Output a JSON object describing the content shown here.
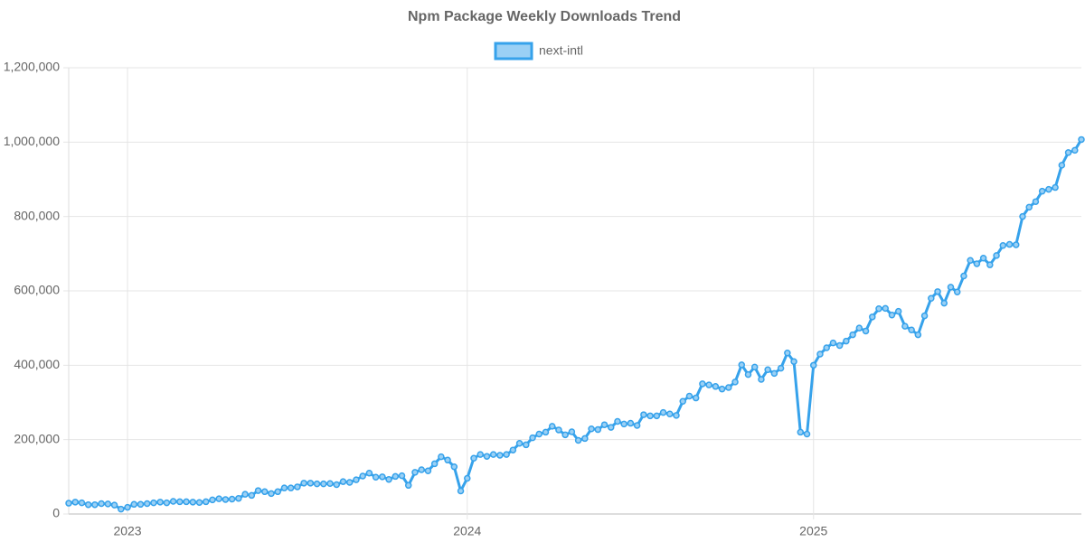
{
  "chart_data": {
    "type": "line",
    "title": "Npm Package Weekly Downloads Trend",
    "categories": [
      null,
      null,
      null,
      null,
      null,
      null,
      null,
      null,
      null,
      "2023",
      null,
      null,
      null,
      null,
      null,
      null,
      null,
      null,
      null,
      null,
      null,
      null,
      null,
      null,
      null,
      null,
      null,
      null,
      null,
      null,
      null,
      null,
      null,
      null,
      null,
      null,
      null,
      null,
      null,
      null,
      null,
      null,
      null,
      null,
      null,
      null,
      null,
      null,
      null,
      null,
      null,
      null,
      null,
      null,
      null,
      null,
      null,
      null,
      null,
      null,
      null,
      "2024",
      null,
      null,
      null,
      null,
      null,
      null,
      null,
      null,
      null,
      null,
      null,
      null,
      null,
      null,
      null,
      null,
      null,
      null,
      null,
      null,
      null,
      null,
      null,
      null,
      null,
      null,
      null,
      null,
      null,
      null,
      null,
      null,
      null,
      null,
      null,
      null,
      null,
      null,
      null,
      null,
      null,
      null,
      null,
      null,
      null,
      null,
      null,
      null,
      null,
      null,
      null,
      null,
      "2025",
      null,
      null,
      null,
      null,
      null,
      null,
      null,
      null,
      null,
      null,
      null,
      null,
      null,
      null,
      null,
      null,
      null,
      null,
      null,
      null,
      null,
      null,
      null,
      null,
      null,
      null,
      null,
      null,
      null,
      null,
      null,
      null,
      null,
      null,
      null,
      null,
      null,
      null,
      null,
      null,
      null
    ],
    "series": [
      {
        "name": "next-intl",
        "color": "#36a2eb",
        "fill": "#9ad0f5",
        "values": [
          29000,
          32000,
          30000,
          25000,
          25000,
          28000,
          27000,
          24000,
          13000,
          18000,
          26000,
          26000,
          28000,
          30000,
          32000,
          30000,
          34000,
          33000,
          33000,
          32000,
          31000,
          33000,
          38000,
          41000,
          39000,
          40000,
          42000,
          53000,
          50000,
          63000,
          60000,
          55000,
          60000,
          70000,
          70000,
          73000,
          83000,
          83000,
          81000,
          81000,
          82000,
          79000,
          87000,
          85000,
          92000,
          102000,
          110000,
          99000,
          100000,
          93000,
          101000,
          103000,
          77000,
          112000,
          119000,
          116000,
          135000,
          154000,
          145000,
          127000,
          62000,
          96000,
          150000,
          160000,
          155000,
          160000,
          158000,
          160000,
          172000,
          190000,
          186000,
          205000,
          215000,
          220000,
          236000,
          226000,
          213000,
          221000,
          198000,
          203000,
          229000,
          227000,
          240000,
          233000,
          249000,
          242000,
          244000,
          238000,
          267000,
          264000,
          264000,
          273000,
          269000,
          265000,
          303000,
          317000,
          312000,
          350000,
          347000,
          343000,
          336000,
          340000,
          355000,
          401000,
          375000,
          395000,
          362000,
          388000,
          378000,
          392000,
          433000,
          410000,
          220000,
          215000,
          400000,
          430000,
          447000,
          460000,
          453000,
          465000,
          482000,
          500000,
          492000,
          530000,
          552000,
          553000,
          535000,
          545000,
          505000,
          495000,
          482000,
          533000,
          580000,
          598000,
          567000,
          610000,
          597000,
          640000,
          682000,
          673000,
          688000,
          670000,
          695000,
          722000,
          725000,
          724000,
          800000,
          825000,
          840000,
          868000,
          873000,
          878000,
          938000,
          972000,
          978000,
          1007000
        ]
      }
    ],
    "ylim": [
      0,
      1200000
    ],
    "yticks": [
      0,
      {
        "value": 200000,
        "label": "200,000"
      },
      {
        "value": 400000,
        "label": "400,000"
      },
      {
        "value": 600000,
        "label": "600,000"
      },
      {
        "value": 800000,
        "label": "800,000"
      },
      {
        "value": 1000000,
        "label": "1,000,000"
      },
      {
        "value": 1200000,
        "label": "1,200,000"
      }
    ],
    "grid": true,
    "legend": "top"
  }
}
